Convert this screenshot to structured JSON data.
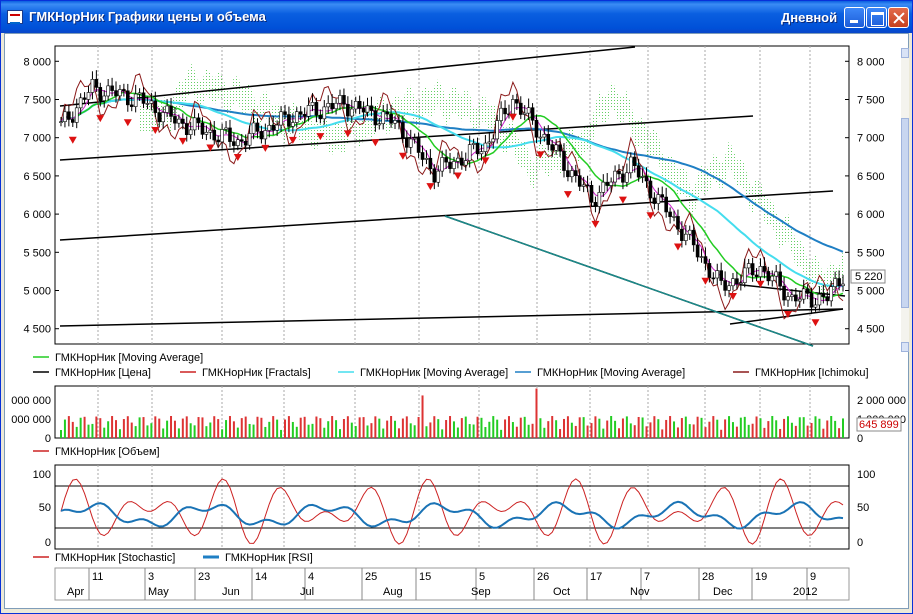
{
  "window": {
    "title": "ГМКНорНик Графики цены и объема",
    "mode": "Дневной"
  },
  "colors": {
    "green_ma": "#22cc22",
    "price": "#000000",
    "fractals": "#cc0000",
    "cyan_ma": "#44ddee",
    "blue_ma": "#1f7fc4",
    "ichimoku": "#8b1a1a",
    "stochastic": "#cc2222",
    "rsi": "#1a73b5"
  },
  "price_panel": {
    "y_ticks": [
      "8 000",
      "7 500",
      "7 000",
      "6 500",
      "6 000",
      "5 500",
      "5 000",
      "4 500"
    ],
    "last_price": "5 220",
    "legend": [
      {
        "label": "ГМКНорНик [Moving Average]",
        "icon": "green-line-icon"
      },
      {
        "label": "ГМКНорНик [Цена]",
        "icon": "black-line-icon"
      },
      {
        "label": "ГМКНорНик [Fractals]",
        "icon": "red-line-icon"
      },
      {
        "label": "ГМКНорНик [Moving Average]",
        "icon": "cyan-line-icon"
      },
      {
        "label": "ГМКНорНик [Moving Average]",
        "icon": "blue-line-icon"
      },
      {
        "label": "ГМКНорНик [Ichimoku]",
        "icon": "darkred-line-icon"
      }
    ]
  },
  "volume_panel": {
    "left_ticks": [
      "000 000",
      "000 000",
      "0"
    ],
    "right_ticks": [
      "2 000 000",
      "1 000 000",
      "0"
    ],
    "last_volume": "645 899",
    "legend": [
      {
        "label": "ГМКНорНик [Объем]",
        "icon": "red-line-icon"
      }
    ]
  },
  "oscillator_panel": {
    "left_ticks": [
      "100",
      "50",
      "0"
    ],
    "right_ticks": [
      "100",
      "50",
      "0"
    ],
    "legend": [
      {
        "label": "ГМКНорНик [Stochastic]",
        "icon": "red-line-icon"
      },
      {
        "label": "ГМКНорНик [RSI]",
        "icon": "blue-line-icon"
      }
    ]
  },
  "time_axis": {
    "days": [
      "11",
      "3",
      "23",
      "14",
      "4",
      "25",
      "15",
      "5",
      "26",
      "17",
      "7",
      "28",
      "19",
      "9"
    ],
    "months": [
      "Apr",
      "May",
      "Jun",
      "Jul",
      "Aug",
      "Sep",
      "Oct",
      "Nov",
      "Dec",
      "2012"
    ]
  }
}
